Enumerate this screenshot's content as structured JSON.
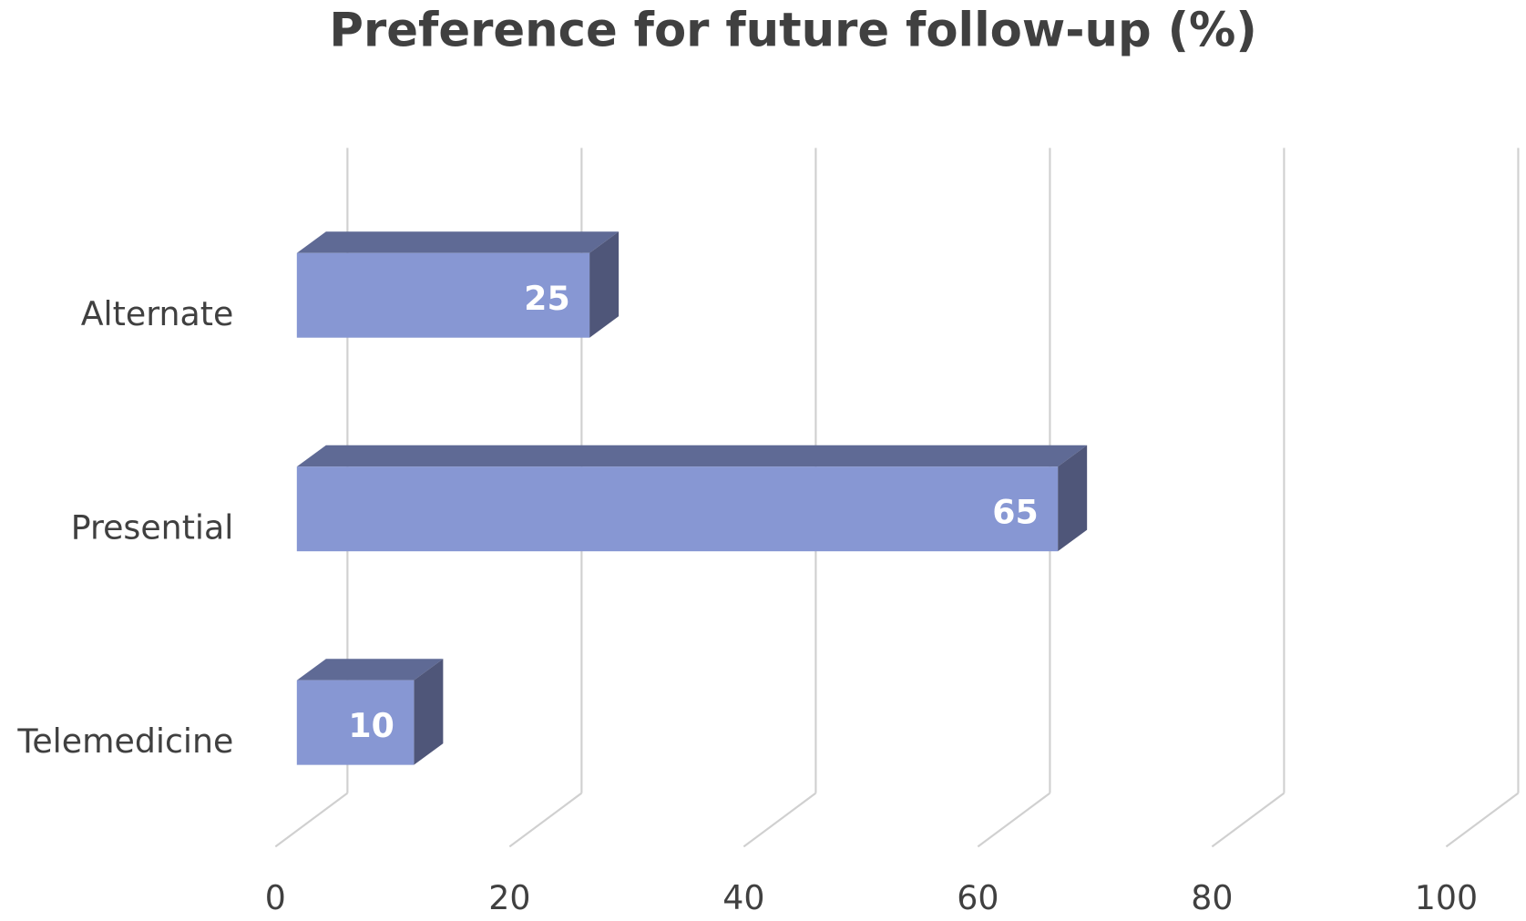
{
  "chart_data": {
    "type": "bar3d",
    "orientation": "horizontal",
    "title": "Preference for  future follow-up (%)",
    "categories": [
      "Alternate",
      "Presential",
      "Telemedicine"
    ],
    "values": [
      25,
      65,
      10
    ],
    "color": "#8797d3",
    "xlim": [
      0,
      100
    ],
    "xticks": [
      0,
      20,
      40,
      60,
      80,
      100
    ],
    "grid": true
  }
}
